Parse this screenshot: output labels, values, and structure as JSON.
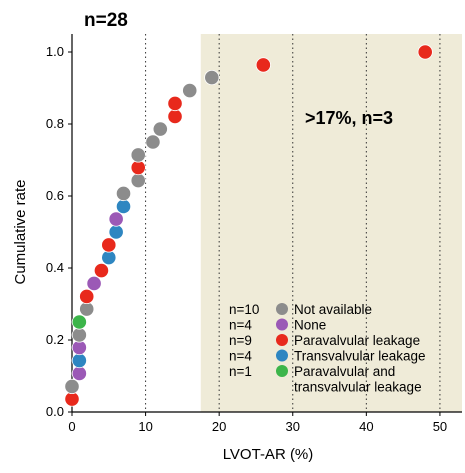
{
  "chart_data": {
    "type": "scatter",
    "title": "n=28",
    "xlabel": "LVOT-AR (%)",
    "ylabel": "Cumulative rate",
    "xlim": [
      0,
      53
    ],
    "ylim": [
      0,
      1.05
    ],
    "xticks": [
      0,
      10,
      20,
      30,
      40,
      50
    ],
    "yticks": [
      0.0,
      0.2,
      0.4,
      0.6,
      0.8,
      1.0
    ],
    "ytick_labels": [
      "0.0",
      "0.2",
      "0.4",
      "0.6",
      "0.8",
      "1.0"
    ],
    "vertical_gridlines": [
      10,
      20,
      30,
      40,
      50
    ],
    "shaded_region": {
      "x_from": 17.5,
      "x_to": 53,
      "color": "#efebd8"
    },
    "annotation": ">17%, n=3",
    "legend_position": "lower-right",
    "categories": [
      {
        "key": "na",
        "name": "Not available",
        "count_label": "n=10",
        "color": "#8c8c8c"
      },
      {
        "key": "none",
        "name": "None",
        "count_label": "n=4",
        "color": "#9b59b6"
      },
      {
        "key": "para",
        "name": "Paravalvular leakage",
        "count_label": "n=9",
        "color": "#e8291c"
      },
      {
        "key": "trans",
        "name": "Transvalvular leakage",
        "count_label": "n=4",
        "color": "#2e86c1"
      },
      {
        "key": "both",
        "name": "Paravalvular and transvalvular leakage",
        "count_label": "n=1",
        "color": "#3cb54a"
      }
    ],
    "points": [
      {
        "x": 0.0,
        "y": 0.036,
        "category": "para"
      },
      {
        "x": 0.0,
        "y": 0.071,
        "category": "na"
      },
      {
        "x": 1.0,
        "y": 0.107,
        "category": "none"
      },
      {
        "x": 1.0,
        "y": 0.143,
        "category": "trans"
      },
      {
        "x": 1.0,
        "y": 0.179,
        "category": "none"
      },
      {
        "x": 1.0,
        "y": 0.214,
        "category": "na"
      },
      {
        "x": 1.0,
        "y": 0.25,
        "category": "both"
      },
      {
        "x": 2.0,
        "y": 0.286,
        "category": "na"
      },
      {
        "x": 2.0,
        "y": 0.321,
        "category": "para"
      },
      {
        "x": 3.0,
        "y": 0.357,
        "category": "none"
      },
      {
        "x": 4.0,
        "y": 0.393,
        "category": "para"
      },
      {
        "x": 5.0,
        "y": 0.429,
        "category": "trans"
      },
      {
        "x": 5.0,
        "y": 0.464,
        "category": "para"
      },
      {
        "x": 6.0,
        "y": 0.5,
        "category": "trans"
      },
      {
        "x": 6.0,
        "y": 0.536,
        "category": "none"
      },
      {
        "x": 7.0,
        "y": 0.571,
        "category": "trans"
      },
      {
        "x": 7.0,
        "y": 0.607,
        "category": "na"
      },
      {
        "x": 9.0,
        "y": 0.643,
        "category": "na"
      },
      {
        "x": 9.0,
        "y": 0.679,
        "category": "para"
      },
      {
        "x": 9.0,
        "y": 0.714,
        "category": "na"
      },
      {
        "x": 11.0,
        "y": 0.75,
        "category": "na"
      },
      {
        "x": 12.0,
        "y": 0.786,
        "category": "na"
      },
      {
        "x": 14.0,
        "y": 0.821,
        "category": "para"
      },
      {
        "x": 14.0,
        "y": 0.857,
        "category": "para"
      },
      {
        "x": 16.0,
        "y": 0.893,
        "category": "na"
      },
      {
        "x": 19.0,
        "y": 0.929,
        "category": "na"
      },
      {
        "x": 26.0,
        "y": 0.964,
        "category": "para"
      },
      {
        "x": 48.0,
        "y": 1.0,
        "category": "para"
      }
    ]
  }
}
